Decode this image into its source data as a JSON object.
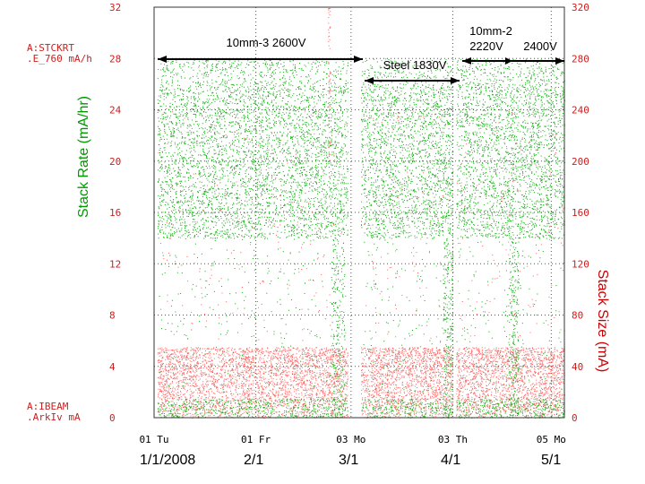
{
  "chart_data": {
    "type": "scatter",
    "left_axis": {
      "channel": "A:STCKRT\n.E_760  mA/h",
      "channel_line1": "A:STCKRT",
      "channel_line2": ".E_760  mA/h",
      "title": "Stack Rate (mA/hr)",
      "ticks": [
        "0",
        "4",
        "8",
        "12",
        "16",
        "20",
        "24",
        "28",
        "32"
      ],
      "ylim": [
        0,
        32
      ],
      "color": "#009900"
    },
    "right_axis": {
      "channel_line1": "A:IBEAM",
      "channel_line2": ".ArkIv  mA",
      "title": "Stack Size (mA)",
      "ticks": [
        "0",
        "40",
        "80",
        "120",
        "160",
        "200",
        "240",
        "280",
        "320"
      ],
      "ylim": [
        0,
        320
      ],
      "color": "#cc0000"
    },
    "x_ticks_top": [
      "01 Tu",
      "01 Fr",
      "03 Mo",
      "03 Th",
      "05 Mo"
    ],
    "x_ticks_bottom": [
      "1/1/2008",
      "2/1",
      "3/1",
      "4/1",
      "5/1"
    ],
    "grid": true,
    "annotations": [
      {
        "text": "10mm-3 2600V",
        "start": "1/1/2008",
        "end": "3/1"
      },
      {
        "text": "Steel 1830V",
        "start": "3/1",
        "end": "4/1"
      },
      {
        "text": "10mm-2",
        "text2": "2220V",
        "text3": "2400V",
        "start": "4/1",
        "end": "5/1"
      }
    ],
    "series": [
      {
        "name": "Stack Rate",
        "color": "#11aa11",
        "typical_y": [
          14,
          26
        ],
        "sparse_y": [
          0,
          28
        ]
      },
      {
        "name": "Stack Size",
        "color": "#ff6060",
        "typical_y": [
          0,
          55
        ],
        "peaks_y": [
          200,
          320
        ]
      }
    ],
    "gaps": [
      {
        "x": "1/1/2008",
        "from_day": 0,
        "to_day": 1
      },
      {
        "x": "3/1",
        "from_day": 59,
        "to_day": 63
      },
      {
        "x": "4/1",
        "from_day": 91,
        "to_day": 92
      }
    ]
  }
}
